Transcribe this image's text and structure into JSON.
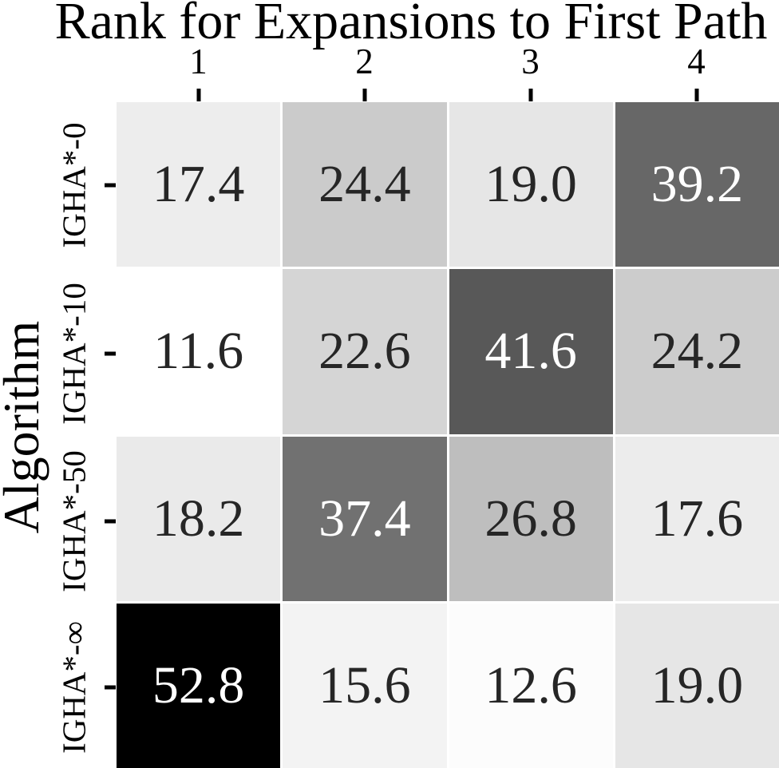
{
  "chart_data": {
    "type": "heatmap",
    "title": "Rank for Expansions to First Path",
    "xlabel": "",
    "ylabel": "Algorithm",
    "x_tick_labels": [
      "1",
      "2",
      "3",
      "4"
    ],
    "y_tick_labels": [
      "IGHA*-0",
      "IGHA*-10",
      "IGHA*-50",
      "IGHA*-∞"
    ],
    "values": [
      [
        17.4,
        24.4,
        19.0,
        39.2
      ],
      [
        11.6,
        22.6,
        41.6,
        24.2
      ],
      [
        18.2,
        37.4,
        26.8,
        17.6
      ],
      [
        52.8,
        15.6,
        12.6,
        19.0
      ]
    ],
    "value_labels": [
      [
        "17.4",
        "24.4",
        "19.0",
        "39.2"
      ],
      [
        "11.6",
        "22.6",
        "41.6",
        "24.2"
      ],
      [
        "18.2",
        "37.4",
        "26.8",
        "17.6"
      ],
      [
        "52.8",
        "15.6",
        "12.6",
        "19.0"
      ]
    ],
    "cell_colors": [
      [
        "#ededed",
        "#cbcbcb",
        "#e6e6e6",
        "#676767"
      ],
      [
        "#ffffff",
        "#d5d5d5",
        "#585858",
        "#cccccc"
      ],
      [
        "#eaeaea",
        "#717171",
        "#bebebe",
        "#ececec"
      ],
      [
        "#000000",
        "#f3f3f3",
        "#fcfcfc",
        "#e6e6e6"
      ]
    ],
    "cell_text_colors": [
      [
        "#262626",
        "#262626",
        "#262626",
        "#ffffff"
      ],
      [
        "#262626",
        "#262626",
        "#ffffff",
        "#262626"
      ],
      [
        "#262626",
        "#ffffff",
        "#262626",
        "#262626"
      ],
      [
        "#ffffff",
        "#262626",
        "#262626",
        "#262626"
      ]
    ],
    "colormap": "Greys (light=low, dark=high)",
    "value_range": [
      11.6,
      52.8
    ],
    "grid": "off",
    "legend": "none",
    "tick_color": "#000000",
    "gap_color": "#ffffff"
  }
}
